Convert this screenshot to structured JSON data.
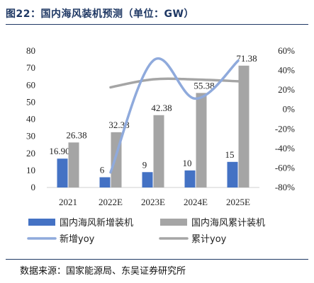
{
  "title": "图22：国内海风装机预测（单位：GW）",
  "source": "数据来源：国家能源局、东吴证券研究所",
  "chart_data": {
    "type": "bar",
    "categories": [
      "2021",
      "2022E",
      "2023E",
      "2024E",
      "2025E"
    ],
    "series": [
      {
        "name": "国内海风新增装机",
        "kind": "bar",
        "axis": "left",
        "color": "#4472c4",
        "values": [
          16.9,
          6,
          9,
          10,
          15
        ],
        "labels": [
          "16.90",
          "6",
          "9",
          "10",
          "15"
        ]
      },
      {
        "name": "国内海风累计装机",
        "kind": "bar",
        "axis": "left",
        "color": "#a5a5a5",
        "values": [
          26.38,
          32.38,
          42.38,
          55.38,
          71.38
        ],
        "labels": [
          "26.38",
          "32.38",
          "42.38",
          "55.38",
          "71.38"
        ]
      },
      {
        "name": "新增yoy",
        "kind": "line",
        "axis": "right",
        "color": "#8faadc",
        "values": [
          null,
          -64.5,
          50,
          11.1,
          50
        ]
      },
      {
        "name": "累计yoy",
        "kind": "line",
        "axis": "right",
        "color": "#a5a5a5",
        "values": [
          null,
          22.7,
          30.9,
          30.7,
          28.9
        ]
      }
    ],
    "y_left": {
      "min": 0,
      "max": 80,
      "step": 10,
      "ticks": [
        "0",
        "10",
        "20",
        "30",
        "40",
        "50",
        "60",
        "70",
        "80"
      ]
    },
    "y_right": {
      "min": -80,
      "max": 60,
      "step": 20,
      "ticks": [
        "-80%",
        "-60%",
        "-40%",
        "-20%",
        "0%",
        "20%",
        "40%",
        "60%"
      ]
    },
    "grid": false,
    "legend_position": "bottom"
  }
}
